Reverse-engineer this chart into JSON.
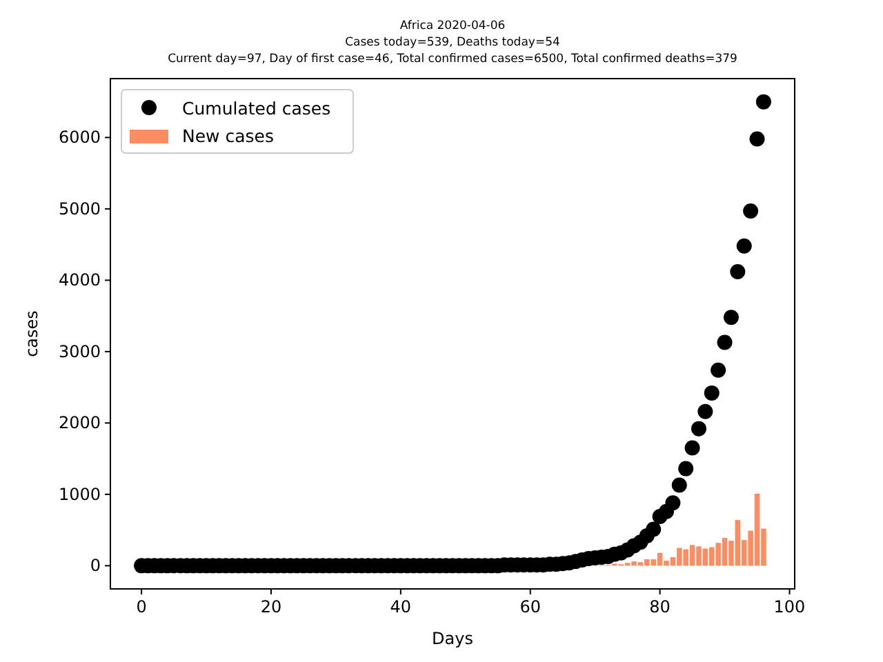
{
  "chart_data": {
    "type": "bar",
    "title": "Africa 2020-04-06",
    "subtitle": "Cases today=539, Deaths today=54\nCurrent day=97, Day of first case=46, Total confirmed cases=6500, Total confirmed deaths=379",
    "xlabel": "Days",
    "ylabel": "cases",
    "x": [
      0,
      1,
      2,
      3,
      4,
      5,
      6,
      7,
      8,
      9,
      10,
      11,
      12,
      13,
      14,
      15,
      16,
      17,
      18,
      19,
      20,
      21,
      22,
      23,
      24,
      25,
      26,
      27,
      28,
      29,
      30,
      31,
      32,
      33,
      34,
      35,
      36,
      37,
      38,
      39,
      40,
      41,
      42,
      43,
      44,
      45,
      46,
      47,
      48,
      49,
      50,
      51,
      52,
      53,
      54,
      55,
      56,
      57,
      58,
      59,
      60,
      61,
      62,
      63,
      64,
      65,
      66,
      67,
      68,
      69,
      70,
      71,
      72,
      73,
      74,
      75,
      76,
      77,
      78,
      79,
      80,
      81,
      82,
      83,
      84,
      85,
      86,
      87,
      88,
      89,
      90,
      91,
      92,
      93,
      94,
      95,
      96
    ],
    "series": [
      {
        "name": "Cumulated cases",
        "type": "scatter",
        "color": "#000000",
        "values": [
          0,
          0,
          0,
          0,
          0,
          0,
          0,
          0,
          0,
          0,
          0,
          0,
          0,
          0,
          0,
          0,
          0,
          0,
          0,
          0,
          0,
          0,
          0,
          0,
          0,
          0,
          0,
          0,
          0,
          0,
          0,
          0,
          0,
          0,
          0,
          0,
          0,
          0,
          0,
          0,
          0,
          0,
          0,
          0,
          0,
          0,
          0,
          0,
          0,
          0,
          0,
          0,
          0,
          0,
          0,
          0,
          10,
          10,
          10,
          10,
          10,
          10,
          10,
          20,
          20,
          30,
          40,
          60,
          80,
          100,
          110,
          120,
          130,
          160,
          180,
          220,
          280,
          330,
          420,
          510,
          690,
          760,
          880,
          1130,
          1360,
          1650,
          1920,
          2160,
          2420,
          2740,
          3130,
          3480,
          4120,
          4480,
          4970,
          5980,
          6500
        ]
      },
      {
        "name": "New cases",
        "color": "#fc8d62",
        "values": [
          0,
          0,
          0,
          0,
          0,
          0,
          0,
          0,
          0,
          0,
          0,
          0,
          0,
          0,
          0,
          0,
          0,
          0,
          0,
          0,
          0,
          0,
          0,
          0,
          0,
          0,
          0,
          0,
          0,
          0,
          0,
          0,
          0,
          0,
          0,
          0,
          0,
          0,
          0,
          0,
          0,
          0,
          0,
          0,
          0,
          0,
          0,
          0,
          0,
          0,
          0,
          0,
          0,
          0,
          0,
          0,
          0,
          0,
          0,
          0,
          0,
          0,
          0,
          0,
          0,
          null,
          null,
          null,
          null,
          null,
          null,
          10,
          10,
          30,
          20,
          40,
          60,
          50,
          90,
          90,
          180,
          70,
          120,
          250,
          230,
          290,
          270,
          240,
          260,
          320,
          390,
          350,
          640,
          360,
          490,
          1010,
          520
        ]
      }
    ],
    "xlim": [
      -4.8,
      100.8
    ],
    "ylim": [
      -325,
      6825
    ],
    "xticks": [
      0,
      20,
      40,
      60,
      80,
      100
    ],
    "yticks": [
      0,
      1000,
      2000,
      3000,
      4000,
      5000,
      6000
    ],
    "marker": "circle",
    "legend": "top left",
    "grid": false
  }
}
